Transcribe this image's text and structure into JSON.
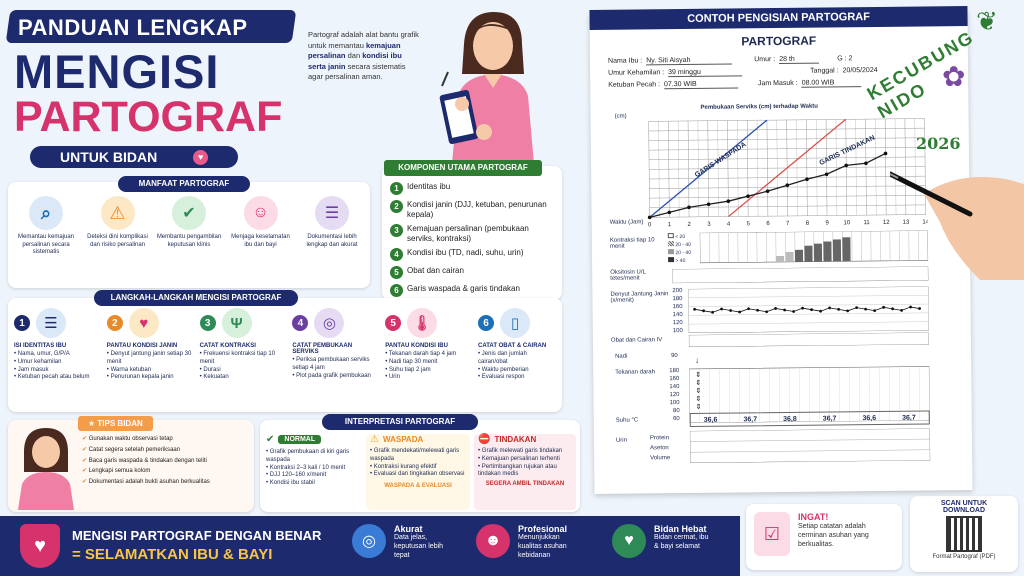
{
  "header": {
    "top": "PANDUAN LENGKAP",
    "line1": "MENGISI",
    "line2": "PARTOGRAF",
    "badge": "UNTUK BIDAN"
  },
  "intro": {
    "p1": "Partograf adalah alat bantu grafik untuk memantau ",
    "b1": "kemajuan persalinan",
    "p2": " dan ",
    "b2": "kondisi ibu serta janin",
    "p3": " secara sistematis agar persalinan aman."
  },
  "manfaat": {
    "title": "MANFAAT PARTOGRAF",
    "items": [
      {
        "icon": "magnifier-icon",
        "text": "Memantau kemajuan persalinan secara sistematis"
      },
      {
        "icon": "warning-icon",
        "text": "Deteksi dini komplikasi dan risiko persalinan"
      },
      {
        "icon": "shield-check-icon",
        "text": "Membantu pengambilan keputusan klinis"
      },
      {
        "icon": "baby-icon",
        "text": "Menjaga keselamatan ibu dan bayi"
      },
      {
        "icon": "clipboard-icon",
        "text": "Dokumentasi lebih lengkap dan akurat"
      }
    ]
  },
  "komponen": {
    "title": "KOMPONEN UTAMA PARTOGRAF",
    "items": [
      "Identitas ibu",
      "Kondisi janin (DJJ, ketuban, penurunan kepala)",
      "Kemajuan persalinan (pembukaan serviks, kontraksi)",
      "Kondisi ibu (TD, nadi, suhu, urin)",
      "Obat dan cairan",
      "Garis waspada & garis tindakan"
    ]
  },
  "langkah": {
    "title": "LANGKAH-LANGKAH MENGISI PARTOGRAF",
    "steps": [
      {
        "n": "1",
        "color": "#1d2a6e",
        "icon": "clipboard-icon",
        "title": "ISI IDENTITAS IBU",
        "items": [
          "Nama, umur, G/P/A",
          "Umur kehamilan",
          "Jam masuk",
          "Ketuban pecah atau belum"
        ]
      },
      {
        "n": "2",
        "color": "#e8892a",
        "icon": "heartbeat-icon",
        "title": "PANTAU KONDISI JANIN",
        "items": [
          "Denyut jantung janin setiap 30 menit",
          "Warna ketuban",
          "Penurunan kepala janin"
        ]
      },
      {
        "n": "3",
        "color": "#2e8b57",
        "icon": "uterus-icon",
        "title": "CATAT KONTRAKSI",
        "items": [
          "Frekuensi kontraksi tiap 10 menit",
          "Durasi",
          "Kekuatan"
        ]
      },
      {
        "n": "4",
        "color": "#6a3fa0",
        "icon": "pelvis-icon",
        "title": "CATAT PEMBUKAAN SERVIKS",
        "items": [
          "Periksa pembukaan serviks setiap 4 jam",
          "Plot pada grafik pembukaan"
        ]
      },
      {
        "n": "5",
        "color": "#d6336c",
        "icon": "thermometer-icon",
        "title": "PANTAU KONDISI IBU",
        "items": [
          "Tekanan darah tiap 4 jam",
          "Nadi tiap 30 menit",
          "Suhu tiap 2 jam",
          "Urin"
        ]
      },
      {
        "n": "6",
        "color": "#1d6fb8",
        "icon": "iv-bag-icon",
        "title": "CATAT OBAT & CAIRAN",
        "items": [
          "Jenis dan jumlah cairan/obat",
          "Waktu pemberian",
          "Evaluasi respon"
        ]
      }
    ]
  },
  "tips": {
    "title": "TIPS BIDAN",
    "items": [
      "Gunakan waktu observasi tetap",
      "Catat segera setelah pemeriksaan",
      "Baca garis waspada & tindakan dengan teliti",
      "Lengkapi semua kolom",
      "Dokumentasi adalah bukti asuhan berkualitas"
    ]
  },
  "interpretasi": {
    "title": "INTERPRETASI PARTOGRAF",
    "normal": {
      "title": "NORMAL",
      "items": [
        "Grafik pembukaan di kiri garis waspada",
        "Kontraksi 2–3 kali / 10 menit",
        "DJJ 120–160 x/menit",
        "Kondisi ibu stabil"
      ]
    },
    "waspada": {
      "title": "WASPADA",
      "items": [
        "Grafik mendekati/melewati garis waspada",
        "Kontraksi kurang efektif",
        "Evaluasi dan tingkatkan observasi"
      ],
      "footer": "WASPADA & EVALUASI"
    },
    "tindakan": {
      "title": "TINDAKAN",
      "items": [
        "Grafik melewati garis tindakan",
        "Kemajuan persalinan terhenti",
        "Pertimbangkan rujukan atau tindakan medis"
      ],
      "footer": "SEGERA AMBIL TINDAKAN"
    }
  },
  "footer": {
    "l1": "MENGISI PARTOGRAF DENGAN BENAR",
    "l2": "= SELAMATKAN IBU & BAYI",
    "f1": {
      "title": "Akurat",
      "text": "Data jelas, keputusan lebih tepat"
    },
    "f2": {
      "title": "Profesional",
      "text": "Menunjukkan kualitas asuhan kebidanan"
    },
    "f3": {
      "title": "Bidan Hebat",
      "text": "Bidan cermat, ibu & bayi selamat"
    },
    "ingat": {
      "title": "INGAT!",
      "text": "Setiap catatan adalah cerminan asuhan yang berkualitas."
    },
    "scan": {
      "title": "SCAN UNTUK DOWNLOAD",
      "caption": "Format Partograf (PDF)"
    }
  },
  "contoh": {
    "banner": "CONTOH PENGISIAN PARTOGRAF",
    "title": "PARTOGRAF",
    "fields": {
      "nama_l": "Nama Ibu :",
      "nama": "Ny. Siti Aisyah",
      "umur_l": "Umur :",
      "umur": "28 th",
      "g": "G : 2",
      "tanggal_l": "Tanggal :",
      "tanggal": "20/05/2024",
      "uk_l": "Umur Kehamilan :",
      "uk": "39 minggu",
      "kp_l": "Ketuban Pecah :",
      "kp": "07.30 WIB",
      "jm_l": "Jam Masuk :",
      "jm": "08.00 WIB"
    },
    "chart_title": "Pembukaan Serviks (cm) terhadap Waktu",
    "cm_label": "(cm)",
    "waktu_label": "Waktu (Jam)",
    "waspada_label": "GARIS WASPADA",
    "tindakan_label": "GARIS TINDAKAN",
    "kontraksi_label": "Kontraksi tiap 10 menit",
    "kontraksi_legend": [
      "< 20",
      "20 - 40",
      "20 - 40",
      "> 40"
    ],
    "oksitosin_label": "Oksitosin U/L tetes/menit",
    "djj_label": "Denyut Jantung Janin (x/menit)",
    "djj_ticks": [
      "200",
      "180",
      "160",
      "140",
      "120",
      "100"
    ],
    "obat_label": "Obat dan Cairan IV",
    "nadi_label": "Nadi",
    "nadi_val": "90",
    "td_label": "Tekanan darah",
    "td_ticks": [
      "180",
      "160",
      "140",
      "120",
      "100",
      "80",
      "60"
    ],
    "suhu_label": "Suhu °C",
    "suhu": [
      "36,6",
      "36,7",
      "36,8",
      "36,7",
      "36,6",
      "36,7"
    ],
    "urin_label": "Urin",
    "urin_items": [
      "Protein",
      "Aseton",
      "Volume"
    ]
  },
  "watermark": {
    "text": "KECUBUNG NIDO",
    "year": "2026"
  },
  "chart_data": {
    "type": "line",
    "title": "Pembukaan Serviks (cm) terhadap Waktu",
    "xlabel": "Waktu (Jam)",
    "ylabel": "(cm)",
    "x": [
      0,
      1,
      2,
      3,
      4,
      5,
      6,
      7,
      8,
      9,
      10,
      11,
      12,
      13,
      14
    ],
    "xlim": [
      0,
      14
    ],
    "ylim": [
      0,
      10
    ],
    "grid": true,
    "series": [
      {
        "name": "GARIS WASPADA",
        "x": [
          0,
          6
        ],
        "values": [
          0,
          10
        ],
        "color": "#2a4fb0"
      },
      {
        "name": "GARIS TINDAKAN",
        "x": [
          4,
          10
        ],
        "values": [
          0,
          10
        ],
        "color": "#d9534f"
      },
      {
        "name": "Pembukaan",
        "x": [
          0,
          1,
          2,
          3,
          4,
          5,
          6,
          7,
          8,
          9,
          10,
          11,
          12
        ],
        "values": [
          0,
          0.5,
          1,
          1.3,
          1.6,
          2.1,
          2.6,
          3.2,
          3.8,
          4.3,
          5.2,
          5.4,
          6.4
        ],
        "color": "#222222"
      }
    ]
  }
}
